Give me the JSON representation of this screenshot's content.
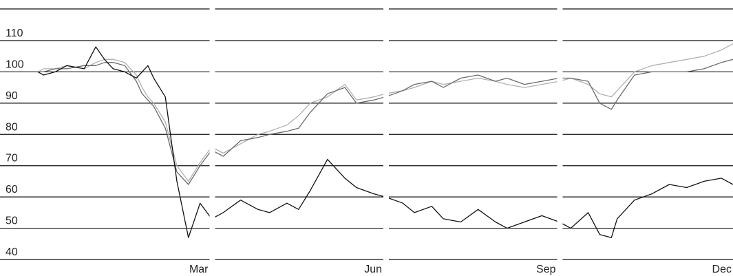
{
  "chart_data": {
    "type": "line",
    "title": "",
    "xlabel": "",
    "ylabel": "",
    "ylim": [
      40,
      115
    ],
    "y_ticks": [
      40,
      50,
      60,
      70,
      80,
      90,
      100,
      110
    ],
    "y_tick_labels": [
      "40",
      "50",
      "60",
      "70",
      "80",
      "90",
      "100",
      "110"
    ],
    "x_tick_labels": [
      "Mar",
      "Jun",
      "Sep",
      "Dec"
    ],
    "x_range_months": [
      0,
      12
    ],
    "panels": 4,
    "grid": true,
    "legend": "none",
    "series": [
      {
        "color": "#b0b0b0",
        "x": [
          0,
          0.1,
          0.3,
          0.5,
          0.8,
          1.0,
          1.15,
          1.3,
          1.5,
          1.7,
          1.8,
          1.9,
          2.0,
          2.2,
          2.4,
          2.6,
          2.8,
          3.0,
          3.2,
          3.5,
          3.8,
          4.0,
          4.3,
          4.5,
          4.7,
          5.0,
          5.3,
          5.5,
          5.8,
          6.0,
          6.3,
          6.5,
          6.8,
          7.0,
          7.3,
          7.6,
          7.9,
          8.1,
          8.4,
          8.7,
          9.0,
          9.2,
          9.5,
          9.7,
          9.9,
          10.0,
          10.3,
          10.6,
          10.9,
          11.2,
          11.5,
          11.8,
          12.0
        ],
        "values": [
          100,
          101,
          101,
          102,
          101,
          103,
          104,
          104,
          103,
          99,
          95,
          92,
          90,
          84,
          70,
          65,
          71,
          76,
          74,
          77,
          80,
          81,
          83,
          86,
          90,
          92,
          96,
          91,
          92,
          93,
          94,
          95,
          97,
          96,
          97,
          98,
          97,
          96,
          95,
          96,
          97,
          98,
          96,
          93,
          92,
          94,
          100,
          102,
          103,
          104,
          105,
          107,
          109
        ]
      },
      {
        "color": "#6a6a6a",
        "x": [
          0,
          0.1,
          0.3,
          0.5,
          0.8,
          1.0,
          1.15,
          1.3,
          1.5,
          1.7,
          1.8,
          1.9,
          2.0,
          2.2,
          2.4,
          2.6,
          2.8,
          3.0,
          3.2,
          3.5,
          3.8,
          4.0,
          4.3,
          4.5,
          4.7,
          5.0,
          5.3,
          5.5,
          5.8,
          6.0,
          6.3,
          6.5,
          6.8,
          7.0,
          7.3,
          7.6,
          7.9,
          8.1,
          8.4,
          8.7,
          9.0,
          9.2,
          9.5,
          9.7,
          9.9,
          10.0,
          10.3,
          10.6,
          10.9,
          11.2,
          11.5,
          11.8,
          12.0
        ],
        "values": [
          100,
          100,
          101,
          101,
          102,
          102,
          103,
          103,
          102,
          97,
          93,
          91,
          89,
          82,
          68,
          64,
          70,
          75,
          73,
          78,
          79,
          80,
          81,
          82,
          87,
          93,
          95,
          90,
          91,
          92,
          94,
          96,
          97,
          95,
          98,
          99,
          97,
          98,
          96,
          97,
          98,
          98,
          97,
          90,
          88,
          91,
          99,
          100,
          100,
          100,
          101,
          103,
          104
        ]
      },
      {
        "color": "#111111",
        "x": [
          0,
          0.1,
          0.3,
          0.5,
          0.8,
          1.0,
          1.15,
          1.3,
          1.5,
          1.7,
          1.8,
          1.9,
          2.0,
          2.2,
          2.4,
          2.6,
          2.8,
          3.0,
          3.2,
          3.5,
          3.8,
          4.0,
          4.3,
          4.5,
          4.7,
          5.0,
          5.3,
          5.5,
          5.8,
          6.0,
          6.3,
          6.5,
          6.8,
          7.0,
          7.3,
          7.6,
          7.9,
          8.1,
          8.4,
          8.7,
          9.0,
          9.2,
          9.5,
          9.7,
          9.9,
          10.0,
          10.3,
          10.6,
          10.9,
          11.2,
          11.5,
          11.8,
          12.0
        ],
        "values": [
          100,
          99,
          100,
          102,
          101,
          108,
          104,
          101,
          100,
          98,
          100,
          102,
          98,
          92,
          65,
          47,
          58,
          53,
          55,
          59,
          56,
          55,
          58,
          56,
          62,
          72,
          66,
          63,
          61,
          60,
          58,
          55,
          57,
          53,
          52,
          56,
          52,
          50,
          52,
          54,
          52,
          50,
          55,
          48,
          47,
          53,
          59,
          61,
          64,
          63,
          65,
          66,
          64
        ]
      }
    ]
  }
}
